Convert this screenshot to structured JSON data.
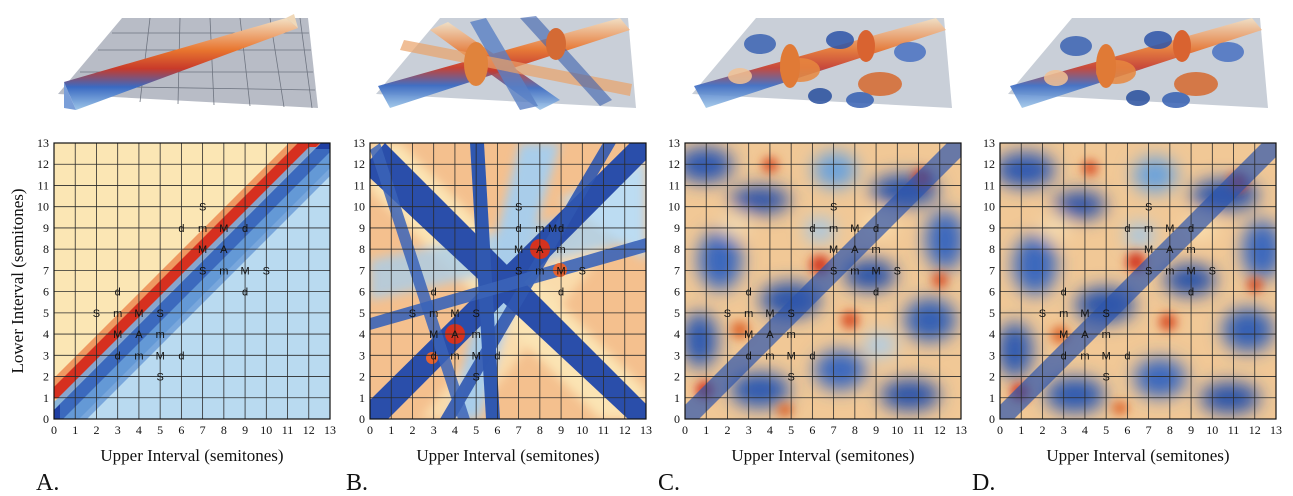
{
  "figure": {
    "ylabel": "Lower Interval (semitones)",
    "panels": [
      {
        "letter": "A.",
        "xlabel": "Upper Interval (semitones)"
      },
      {
        "letter": "B.",
        "xlabel": "Upper Interval (semitones)"
      },
      {
        "letter": "C.",
        "xlabel": "Upper Interval (semitones)"
      },
      {
        "letter": "D.",
        "xlabel": "Upper Interval (semitones)"
      }
    ]
  },
  "chart_data": [
    {
      "type": "heatmap",
      "panel": "A.",
      "xlabel": "Upper Interval (semitones)",
      "ylabel": "Lower Interval (semitones)",
      "xlim": [
        0,
        13
      ],
      "ylim": [
        0,
        13
      ],
      "xticks": [
        0,
        1,
        2,
        3,
        4,
        5,
        6,
        7,
        8,
        9,
        10,
        11,
        12,
        13
      ],
      "yticks": [
        0,
        1,
        2,
        3,
        4,
        5,
        6,
        7,
        8,
        9,
        10,
        11,
        12,
        13
      ],
      "grid": true,
      "surface": "diagonal ridge along lower = upper + 1 (red), trough along lower = upper (blue)",
      "annotations": [
        {
          "text": "S",
          "x": 7,
          "y": 10
        },
        {
          "text": "d",
          "x": 6,
          "y": 9
        },
        {
          "text": "m",
          "x": 7,
          "y": 9
        },
        {
          "text": "M",
          "x": 8,
          "y": 9
        },
        {
          "text": "d",
          "x": 9,
          "y": 9
        },
        {
          "text": "M",
          "x": 7,
          "y": 8
        },
        {
          "text": "A",
          "x": 8,
          "y": 8
        },
        {
          "text": "S",
          "x": 7,
          "y": 7
        },
        {
          "text": "m",
          "x": 8,
          "y": 7
        },
        {
          "text": "M",
          "x": 9,
          "y": 7
        },
        {
          "text": "S",
          "x": 10,
          "y": 7
        },
        {
          "text": "d",
          "x": 9,
          "y": 6
        },
        {
          "text": "d",
          "x": 3,
          "y": 6
        },
        {
          "text": "S",
          "x": 2,
          "y": 5
        },
        {
          "text": "m",
          "x": 3,
          "y": 5
        },
        {
          "text": "M",
          "x": 4,
          "y": 5
        },
        {
          "text": "S",
          "x": 5,
          "y": 5
        },
        {
          "text": "M",
          "x": 3,
          "y": 4
        },
        {
          "text": "A",
          "x": 4,
          "y": 4
        },
        {
          "text": "m",
          "x": 5,
          "y": 4
        },
        {
          "text": "d",
          "x": 3,
          "y": 3
        },
        {
          "text": "m",
          "x": 4,
          "y": 3
        },
        {
          "text": "M",
          "x": 5,
          "y": 3
        },
        {
          "text": "d",
          "x": 6,
          "y": 3
        },
        {
          "text": "S",
          "x": 5,
          "y": 2
        }
      ]
    },
    {
      "type": "heatmap",
      "panel": "B.",
      "xlabel": "Upper Interval (semitones)",
      "ylabel": "Lower Interval (semitones)",
      "xlim": [
        0,
        13
      ],
      "ylim": [
        0,
        13
      ],
      "xticks": [
        0,
        1,
        2,
        3,
        4,
        5,
        6,
        7,
        8,
        9,
        10,
        11,
        12,
        13
      ],
      "yticks": [
        0,
        1,
        2,
        3,
        4,
        5,
        6,
        7,
        8,
        9,
        10,
        11,
        12,
        13
      ],
      "grid": true,
      "surface": "radiating tension ridges crossing near (4,4) and (8,8)",
      "annotations": [
        {
          "text": "S",
          "x": 7,
          "y": 10
        },
        {
          "text": "d",
          "x": 7,
          "y": 9
        },
        {
          "text": "m",
          "x": 8,
          "y": 9
        },
        {
          "text": "M",
          "x": 8.6,
          "y": 9
        },
        {
          "text": "d",
          "x": 9,
          "y": 9
        },
        {
          "text": "M",
          "x": 7,
          "y": 8
        },
        {
          "text": "A",
          "x": 8,
          "y": 8
        },
        {
          "text": "m",
          "x": 9,
          "y": 8
        },
        {
          "text": "S",
          "x": 7,
          "y": 7
        },
        {
          "text": "m",
          "x": 8,
          "y": 7
        },
        {
          "text": "M",
          "x": 9,
          "y": 7
        },
        {
          "text": "S",
          "x": 10,
          "y": 7
        },
        {
          "text": "d",
          "x": 9,
          "y": 6
        },
        {
          "text": "d",
          "x": 3,
          "y": 6
        },
        {
          "text": "S",
          "x": 2,
          "y": 5
        },
        {
          "text": "m",
          "x": 3,
          "y": 5
        },
        {
          "text": "M",
          "x": 4,
          "y": 5
        },
        {
          "text": "S",
          "x": 5,
          "y": 5
        },
        {
          "text": "M",
          "x": 3,
          "y": 4
        },
        {
          "text": "A",
          "x": 4,
          "y": 4
        },
        {
          "text": "m",
          "x": 5,
          "y": 4
        },
        {
          "text": "d",
          "x": 3,
          "y": 3
        },
        {
          "text": "m",
          "x": 4,
          "y": 3
        },
        {
          "text": "M",
          "x": 5,
          "y": 3
        },
        {
          "text": "d",
          "x": 6,
          "y": 3
        },
        {
          "text": "S",
          "x": 5,
          "y": 2
        }
      ]
    },
    {
      "type": "heatmap",
      "panel": "C.",
      "xlabel": "Upper Interval (semitones)",
      "ylabel": "Lower Interval (semitones)",
      "xlim": [
        0,
        13
      ],
      "ylim": [
        0,
        13
      ],
      "xticks": [
        0,
        1,
        2,
        3,
        4,
        5,
        6,
        7,
        8,
        9,
        10,
        11,
        12,
        13
      ],
      "yticks": [
        0,
        1,
        2,
        3,
        4,
        5,
        6,
        7,
        8,
        9,
        10,
        11,
        12,
        13
      ],
      "grid": true,
      "surface": "irregular mottled tension landscape",
      "annotations": [
        {
          "text": "S",
          "x": 7,
          "y": 10
        },
        {
          "text": "d",
          "x": 6,
          "y": 9
        },
        {
          "text": "m",
          "x": 7,
          "y": 9
        },
        {
          "text": "M",
          "x": 8,
          "y": 9
        },
        {
          "text": "d",
          "x": 9,
          "y": 9
        },
        {
          "text": "M",
          "x": 7,
          "y": 8
        },
        {
          "text": "A",
          "x": 8,
          "y": 8
        },
        {
          "text": "m",
          "x": 9,
          "y": 8
        },
        {
          "text": "S",
          "x": 7,
          "y": 7
        },
        {
          "text": "m",
          "x": 8,
          "y": 7
        },
        {
          "text": "M",
          "x": 9,
          "y": 7
        },
        {
          "text": "S",
          "x": 10,
          "y": 7
        },
        {
          "text": "d",
          "x": 9,
          "y": 6
        },
        {
          "text": "d",
          "x": 3,
          "y": 6
        },
        {
          "text": "S",
          "x": 2,
          "y": 5
        },
        {
          "text": "m",
          "x": 3,
          "y": 5
        },
        {
          "text": "M",
          "x": 4,
          "y": 5
        },
        {
          "text": "S",
          "x": 5,
          "y": 5
        },
        {
          "text": "M",
          "x": 3,
          "y": 4
        },
        {
          "text": "A",
          "x": 4,
          "y": 4
        },
        {
          "text": "m",
          "x": 5,
          "y": 4
        },
        {
          "text": "d",
          "x": 3,
          "y": 3
        },
        {
          "text": "m",
          "x": 4,
          "y": 3
        },
        {
          "text": "M",
          "x": 5,
          "y": 3
        },
        {
          "text": "d",
          "x": 6,
          "y": 3
        },
        {
          "text": "S",
          "x": 5,
          "y": 2
        }
      ]
    },
    {
      "type": "heatmap",
      "panel": "D.",
      "xlabel": "Upper Interval (semitones)",
      "ylabel": "Lower Interval (semitones)",
      "xlim": [
        0,
        13
      ],
      "ylim": [
        0,
        13
      ],
      "xticks": [
        0,
        1,
        2,
        3,
        4,
        5,
        6,
        7,
        8,
        9,
        10,
        11,
        12,
        13
      ],
      "yticks": [
        0,
        1,
        2,
        3,
        4,
        5,
        6,
        7,
        8,
        9,
        10,
        11,
        12,
        13
      ],
      "grid": true,
      "surface": "irregular mottled tension landscape, variant",
      "annotations": [
        {
          "text": "S",
          "x": 7,
          "y": 10
        },
        {
          "text": "d",
          "x": 6,
          "y": 9
        },
        {
          "text": "m",
          "x": 7,
          "y": 9
        },
        {
          "text": "M",
          "x": 8,
          "y": 9
        },
        {
          "text": "d",
          "x": 9,
          "y": 9
        },
        {
          "text": "M",
          "x": 7,
          "y": 8
        },
        {
          "text": "A",
          "x": 8,
          "y": 8
        },
        {
          "text": "m",
          "x": 9,
          "y": 8
        },
        {
          "text": "S",
          "x": 7,
          "y": 7
        },
        {
          "text": "m",
          "x": 8,
          "y": 7
        },
        {
          "text": "M",
          "x": 9,
          "y": 7
        },
        {
          "text": "S",
          "x": 10,
          "y": 7
        },
        {
          "text": "d",
          "x": 9,
          "y": 6
        },
        {
          "text": "d",
          "x": 3,
          "y": 6
        },
        {
          "text": "S",
          "x": 2,
          "y": 5
        },
        {
          "text": "m",
          "x": 3,
          "y": 5
        },
        {
          "text": "M",
          "x": 4,
          "y": 5
        },
        {
          "text": "S",
          "x": 5,
          "y": 5
        },
        {
          "text": "M",
          "x": 3,
          "y": 4
        },
        {
          "text": "A",
          "x": 4,
          "y": 4
        },
        {
          "text": "m",
          "x": 5,
          "y": 4
        },
        {
          "text": "d",
          "x": 3,
          "y": 3
        },
        {
          "text": "m",
          "x": 4,
          "y": 3
        },
        {
          "text": "M",
          "x": 5,
          "y": 3
        },
        {
          "text": "d",
          "x": 6,
          "y": 3
        },
        {
          "text": "S",
          "x": 5,
          "y": 2
        }
      ]
    }
  ]
}
